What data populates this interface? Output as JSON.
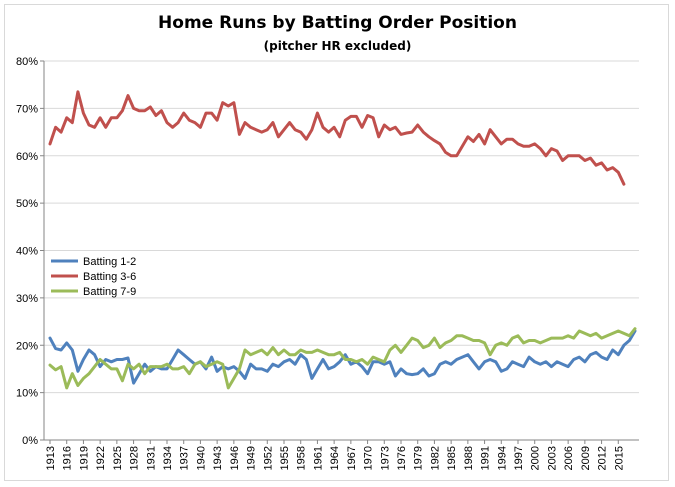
{
  "chart_data": {
    "type": "line",
    "title": "Home Runs by Batting Order Position",
    "subtitle": "(pitcher HR excluded)",
    "xlabel": "",
    "ylabel": "",
    "ylim": [
      0,
      0.8
    ],
    "y_ticks": [
      "0%",
      "10%",
      "20%",
      "30%",
      "40%",
      "50%",
      "60%",
      "70%",
      "80%"
    ],
    "x_start": 1913,
    "x_end": 2018,
    "x_tick_labels": [
      "1913",
      "1916",
      "1919",
      "1922",
      "1925",
      "1928",
      "1931",
      "1934",
      "1937",
      "1940",
      "1943",
      "1946",
      "1949",
      "1952",
      "1955",
      "1958",
      "1961",
      "1964",
      "1967",
      "1970",
      "1973",
      "1976",
      "1979",
      "1982",
      "1985",
      "1988",
      "1991",
      "1994",
      "1997",
      "2000",
      "2003",
      "2006",
      "2009",
      "2012",
      "2015"
    ],
    "grid": true,
    "legend_position": "left-middle",
    "series": [
      {
        "name": "Batting 1-2",
        "color": "#4f81bd",
        "values": [
          0.215,
          0.193,
          0.19,
          0.205,
          0.19,
          0.145,
          0.17,
          0.19,
          0.18,
          0.155,
          0.17,
          0.165,
          0.17,
          0.17,
          0.173,
          0.12,
          0.14,
          0.16,
          0.145,
          0.155,
          0.15,
          0.15,
          0.17,
          0.19,
          0.18,
          0.17,
          0.16,
          0.165,
          0.15,
          0.175,
          0.145,
          0.155,
          0.15,
          0.155,
          0.145,
          0.13,
          0.16,
          0.15,
          0.15,
          0.145,
          0.16,
          0.155,
          0.165,
          0.17,
          0.16,
          0.18,
          0.17,
          0.13,
          0.15,
          0.17,
          0.15,
          0.155,
          0.165,
          0.18,
          0.16,
          0.165,
          0.155,
          0.14,
          0.165,
          0.165,
          0.16,
          0.165,
          0.135,
          0.15,
          0.14,
          0.138,
          0.14,
          0.15,
          0.135,
          0.14,
          0.16,
          0.165,
          0.16,
          0.17,
          0.175,
          0.18,
          0.165,
          0.15,
          0.165,
          0.17,
          0.165,
          0.145,
          0.15,
          0.165,
          0.16,
          0.155,
          0.175,
          0.165,
          0.16,
          0.165,
          0.155,
          0.165,
          0.16,
          0.155,
          0.17,
          0.175,
          0.165,
          0.18,
          0.185,
          0.175,
          0.17,
          0.19,
          0.18,
          0.2,
          0.21,
          0.23
        ]
      },
      {
        "name": "Batting 3-6",
        "color": "#c0504d",
        "values": [
          0.625,
          0.66,
          0.65,
          0.68,
          0.67,
          0.735,
          0.69,
          0.665,
          0.66,
          0.68,
          0.66,
          0.68,
          0.68,
          0.695,
          0.727,
          0.7,
          0.695,
          0.695,
          0.703,
          0.685,
          0.695,
          0.67,
          0.66,
          0.67,
          0.69,
          0.675,
          0.67,
          0.66,
          0.69,
          0.69,
          0.675,
          0.712,
          0.705,
          0.712,
          0.645,
          0.67,
          0.66,
          0.655,
          0.65,
          0.655,
          0.67,
          0.64,
          0.655,
          0.67,
          0.655,
          0.65,
          0.635,
          0.655,
          0.69,
          0.66,
          0.65,
          0.66,
          0.64,
          0.675,
          0.683,
          0.683,
          0.66,
          0.685,
          0.68,
          0.64,
          0.665,
          0.655,
          0.66,
          0.645,
          0.648,
          0.65,
          0.665,
          0.65,
          0.64,
          0.632,
          0.625,
          0.607,
          0.6,
          0.6,
          0.62,
          0.64,
          0.63,
          0.645,
          0.625,
          0.655,
          0.64,
          0.625,
          0.635,
          0.635,
          0.625,
          0.62,
          0.62,
          0.625,
          0.615,
          0.6,
          0.615,
          0.61,
          0.59,
          0.6,
          0.6,
          0.6,
          0.59,
          0.595,
          0.58,
          0.585,
          0.57,
          0.575,
          0.565,
          0.54
        ]
      },
      {
        "name": "Batting 7-9",
        "color": "#9bbb59",
        "values": [
          0.158,
          0.148,
          0.155,
          0.11,
          0.14,
          0.115,
          0.13,
          0.14,
          0.155,
          0.17,
          0.16,
          0.15,
          0.15,
          0.125,
          0.16,
          0.15,
          0.16,
          0.14,
          0.155,
          0.155,
          0.155,
          0.16,
          0.15,
          0.15,
          0.155,
          0.14,
          0.16,
          0.165,
          0.155,
          0.16,
          0.165,
          0.16,
          0.11,
          0.13,
          0.15,
          0.19,
          0.18,
          0.185,
          0.19,
          0.18,
          0.195,
          0.18,
          0.19,
          0.18,
          0.18,
          0.19,
          0.185,
          0.185,
          0.19,
          0.185,
          0.18,
          0.18,
          0.185,
          0.17,
          0.17,
          0.165,
          0.17,
          0.16,
          0.175,
          0.17,
          0.165,
          0.19,
          0.2,
          0.185,
          0.2,
          0.215,
          0.21,
          0.195,
          0.2,
          0.215,
          0.195,
          0.205,
          0.21,
          0.22,
          0.22,
          0.215,
          0.21,
          0.21,
          0.205,
          0.18,
          0.2,
          0.205,
          0.2,
          0.215,
          0.22,
          0.205,
          0.21,
          0.21,
          0.205,
          0.21,
          0.215,
          0.215,
          0.215,
          0.22,
          0.215,
          0.23,
          0.225,
          0.22,
          0.225,
          0.215,
          0.22,
          0.225,
          0.23,
          0.225,
          0.22,
          0.235
        ]
      }
    ]
  }
}
